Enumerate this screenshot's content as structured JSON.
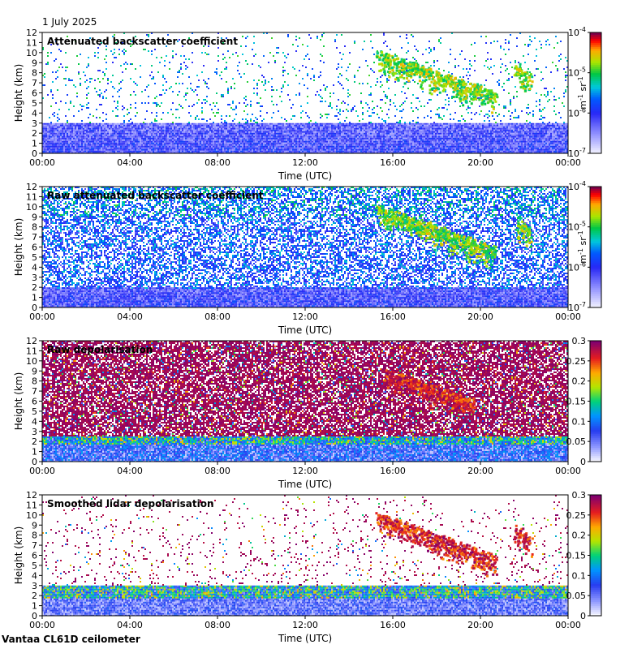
{
  "date": "1 July 2025",
  "footer": "Vantaa CL61D ceilometer",
  "colors": {
    "background": "#ffffff",
    "backscatter_low": "#e0e0ff",
    "backscatter_mid": "#0000ff",
    "backscatter_high": "#ff0000",
    "depol_dense": "#800080"
  },
  "chart_data": [
    {
      "type": "heatmap",
      "title": "Attenuated backscatter coefficient",
      "xlabel": "Time (UTC)",
      "ylabel": "Height (km)",
      "x_ticks": [
        "00:00",
        "04:00",
        "08:00",
        "12:00",
        "16:00",
        "20:00",
        "00:00"
      ],
      "y_ticks": [
        "0",
        "1",
        "2",
        "3",
        "4",
        "5",
        "6",
        "7",
        "8",
        "9",
        "10",
        "11",
        "12"
      ],
      "ylim": [
        0,
        12
      ],
      "xlim_hours": [
        0,
        24
      ],
      "colorbar": {
        "scale": "log",
        "range": [
          1e-07,
          0.0001
        ],
        "ticks": [
          "10-7",
          "10-6",
          "10-5",
          "10-4"
        ],
        "unit": "m-1 sr-1"
      },
      "features": {
        "boundary_layer_top_km": 3,
        "cloud_layer": {
          "time_h": [
            15.2,
            20.5
          ],
          "height_km": [
            6,
            10
          ]
        },
        "cloud_layer_2": {
          "time_h": [
            21.5,
            22.1
          ],
          "height_km": [
            7.5,
            8.8
          ]
        }
      }
    },
    {
      "type": "heatmap",
      "title": "Raw attenuated backscatter coefficient",
      "xlabel": "Time (UTC)",
      "ylabel": "Height (km)",
      "x_ticks": [
        "00:00",
        "04:00",
        "08:00",
        "12:00",
        "16:00",
        "20:00",
        "00:00"
      ],
      "y_ticks": [
        "0",
        "1",
        "2",
        "3",
        "4",
        "5",
        "6",
        "7",
        "8",
        "9",
        "10",
        "11",
        "12"
      ],
      "ylim": [
        0,
        12
      ],
      "xlim_hours": [
        0,
        24
      ],
      "colorbar": {
        "scale": "log",
        "range": [
          1e-07,
          0.0001
        ],
        "ticks": [
          "10-7",
          "10-6",
          "10-5",
          "10-4"
        ],
        "unit": "m-1 sr-1"
      },
      "features": {
        "boundary_layer_top_km": 2,
        "cloud_layer": {
          "time_h": [
            15.2,
            20.5
          ],
          "height_km": [
            5.8,
            10
          ]
        },
        "cloud_layer_2": {
          "time_h": [
            21.5,
            22.1
          ],
          "height_km": [
            7.5,
            8.8
          ]
        }
      }
    },
    {
      "type": "heatmap",
      "title": "Raw depolarisation",
      "xlabel": "Time (UTC)",
      "ylabel": "Height (km)",
      "x_ticks": [
        "00:00",
        "04:00",
        "08:00",
        "12:00",
        "16:00",
        "20:00",
        "00:00"
      ],
      "y_ticks": [
        "0",
        "1",
        "2",
        "3",
        "4",
        "5",
        "6",
        "7",
        "8",
        "9",
        "10",
        "11",
        "12"
      ],
      "ylim": [
        0,
        12
      ],
      "xlim_hours": [
        0,
        24
      ],
      "colorbar": {
        "scale": "linear",
        "range": [
          0,
          0.3
        ],
        "ticks": [
          "0",
          "0.05",
          "0.1",
          "0.15",
          "0.2",
          "0.25",
          "0.3"
        ],
        "unit": ""
      },
      "features": {
        "boundary_layer_top_km": 2.5,
        "cloud_layer": {
          "time_h": [
            15.5,
            19.5
          ],
          "height_km": [
            6,
            9
          ]
        }
      }
    },
    {
      "type": "heatmap",
      "title": "Smoothed lidar depolarisation",
      "xlabel": "Time (UTC)",
      "ylabel": "Height (km)",
      "x_ticks": [
        "00:00",
        "04:00",
        "08:00",
        "12:00",
        "16:00",
        "20:00",
        "00:00"
      ],
      "y_ticks": [
        "0",
        "1",
        "2",
        "3",
        "4",
        "5",
        "6",
        "7",
        "8",
        "9",
        "10",
        "11",
        "12"
      ],
      "ylim": [
        0,
        12
      ],
      "xlim_hours": [
        0,
        24
      ],
      "colorbar": {
        "scale": "linear",
        "range": [
          0,
          0.3
        ],
        "ticks": [
          "0",
          "0.05",
          "0.1",
          "0.15",
          "0.2",
          "0.25",
          "0.3"
        ],
        "unit": ""
      },
      "features": {
        "boundary_layer_top_km": 3,
        "cloud_layer": {
          "time_h": [
            15.2,
            20.5
          ],
          "height_km": [
            5.8,
            10
          ]
        },
        "cloud_layer_2": {
          "time_h": [
            21.5,
            22.1
          ],
          "height_km": [
            7.5,
            8.8
          ]
        }
      }
    }
  ]
}
